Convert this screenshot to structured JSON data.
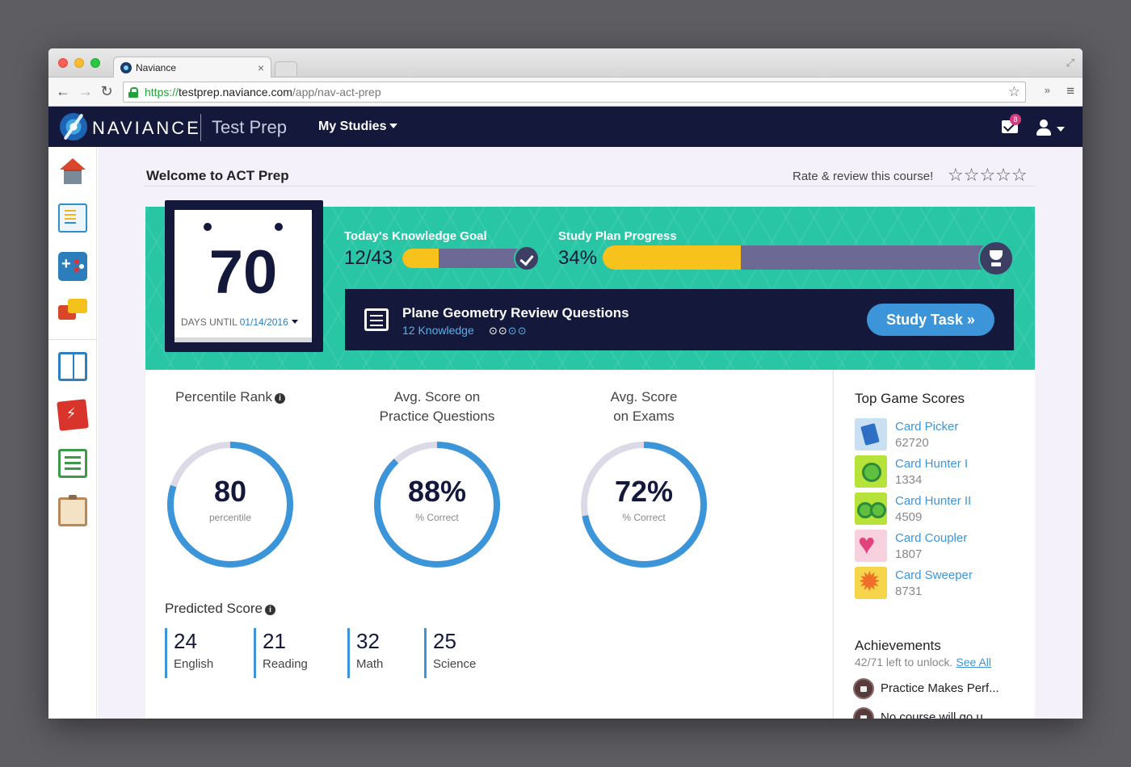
{
  "browser": {
    "tab_title": "Naviance",
    "tab_close": "×",
    "url_scheme": "https://",
    "url_host": "testprep.naviance.com",
    "url_path": "/app/nav-act-prep",
    "nav_back": "←",
    "nav_forward": "→",
    "nav_reload": "↻",
    "bookmark": "☆",
    "extensions": "»",
    "menu": "≡",
    "fullscreen": "⤢"
  },
  "header": {
    "brand": "NAVIANCE",
    "product": "Test Prep",
    "menu_label": "My Studies",
    "mail_badge": "8"
  },
  "page": {
    "welcome": "Welcome to ACT Prep",
    "rate_label": "Rate & review this course!",
    "rate_stars": "☆☆☆☆☆"
  },
  "countdown": {
    "days": "70",
    "label": "DAYS UNTIL",
    "date": "01/14/2016"
  },
  "goal": {
    "label": "Today's Knowledge Goal",
    "value": "12/43",
    "fraction": 0.28
  },
  "plan": {
    "label": "Study Plan Progress",
    "value": "34%",
    "fraction": 0.34
  },
  "task": {
    "title": "Plane Geometry Review Questions",
    "subtitle": "12 Knowledge",
    "dots_done": "⊙⊙",
    "dots_todo": "⊙⊙",
    "button": "Study Task »"
  },
  "stats": [
    {
      "title_line1": "Percentile Rank",
      "title_line2": "",
      "value": "80",
      "unit": "percentile",
      "fraction": 0.8,
      "info": "i"
    },
    {
      "title_line1": "Avg. Score on",
      "title_line2": "Practice Questions",
      "value": "88%",
      "unit": "% Correct",
      "fraction": 0.88
    },
    {
      "title_line1": "Avg. Score",
      "title_line2": "on Exams",
      "value": "72%",
      "unit": "% Correct",
      "fraction": 0.72
    }
  ],
  "predicted": {
    "title": "Predicted Score",
    "info": "i",
    "items": [
      {
        "score": "24",
        "subject": "English"
      },
      {
        "score": "21",
        "subject": "Reading"
      },
      {
        "score": "32",
        "subject": "Math"
      },
      {
        "score": "25",
        "subject": "Science"
      }
    ]
  },
  "games": {
    "title": "Top Game Scores",
    "items": [
      {
        "name": "Card Picker",
        "score": "62720",
        "icon": "card-picker-icon"
      },
      {
        "name": "Card Hunter I",
        "score": "1334",
        "icon": "card-hunter-icon"
      },
      {
        "name": "Card Hunter II",
        "score": "4509",
        "icon": "card-hunter-ii-icon"
      },
      {
        "name": "Card Coupler",
        "score": "1807",
        "icon": "card-coupler-icon"
      },
      {
        "name": "Card Sweeper",
        "score": "8731",
        "icon": "card-sweeper-icon"
      }
    ]
  },
  "achievements": {
    "title": "Achievements",
    "left_text": "42/71 left to unlock.",
    "see_all": "See All",
    "items": [
      {
        "name": "Practice Makes Perf..."
      },
      {
        "name": "No course will go u..."
      }
    ]
  },
  "colors": {
    "navy": "#14193b",
    "teal": "#28c6a5",
    "accent_blue": "#3d95d9",
    "progress_yellow": "#f7c21b",
    "ring_track": "#dcdae6"
  }
}
